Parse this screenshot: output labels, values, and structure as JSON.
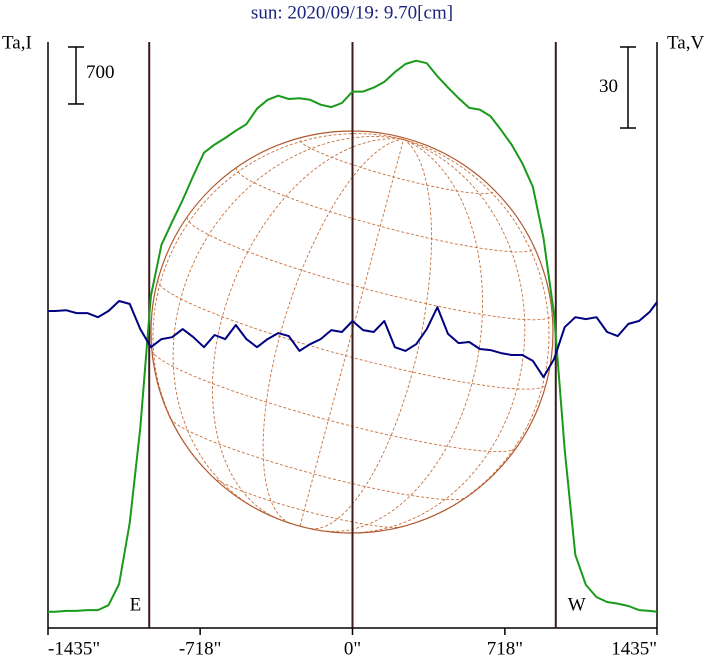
{
  "chart_data": {
    "type": "line",
    "title": "sun: 2020/09/19: 9.70[cm]",
    "ylabel": "Ta,I",
    "y2label": "Ta,V",
    "x": [
      -1435,
      -1400,
      -1350,
      -1300,
      -1250,
      -1200,
      -1150,
      -1100,
      -1050,
      -1000,
      -950,
      -900,
      -850,
      -800,
      -750,
      -700,
      -650,
      -600,
      -550,
      -500,
      -450,
      -400,
      -350,
      -300,
      -250,
      -200,
      -150,
      -100,
      -50,
      0,
      50,
      100,
      150,
      200,
      250,
      300,
      350,
      400,
      450,
      500,
      550,
      600,
      650,
      700,
      750,
      800,
      850,
      900,
      950,
      1000,
      1050,
      1100,
      1150,
      1200,
      1250,
      1300,
      1350,
      1400,
      1435
    ],
    "series": [
      {
        "color": "#1a9a1a",
        "axis": "y",
        "values": [
          200,
          200,
          210,
          210,
          220,
          220,
          280,
          540,
          1290,
          2460,
          4080,
          4710,
          4990,
          5260,
          5560,
          5840,
          5940,
          6020,
          6110,
          6190,
          6380,
          6490,
          6540,
          6500,
          6510,
          6490,
          6430,
          6400,
          6450,
          6590,
          6590,
          6640,
          6710,
          6830,
          6930,
          6970,
          6940,
          6780,
          6640,
          6510,
          6390,
          6370,
          6290,
          6120,
          5940,
          5710,
          5420,
          4790,
          3850,
          2190,
          900,
          530,
          380,
          320,
          300,
          270,
          220,
          210,
          200
        ]
      },
      {
        "color": "#000080",
        "axis": "y2",
        "values": [
          10.4,
          10.4,
          10.7,
          9.6,
          9.6,
          8.1,
          10.4,
          14.1,
          13.0,
          3.7,
          -3.0,
          0,
          0.7,
          3.7,
          0.7,
          -3.0,
          1.5,
          0,
          5.2,
          0,
          -3.0,
          0,
          2.2,
          1.1,
          -4.4,
          -1.9,
          0,
          3.3,
          2.6,
          6.7,
          3.3,
          2.6,
          6.7,
          -3.0,
          -4.4,
          -1.9,
          3.7,
          11.8,
          1.9,
          -1.5,
          -1.1,
          -3.7,
          -4.1,
          -5.2,
          -5.9,
          -5.9,
          -8.1,
          -14.1,
          -7.4,
          4.4,
          8.1,
          7.4,
          8.1,
          2.6,
          1.1,
          5.6,
          6.7,
          10.0,
          13.7
        ]
      }
    ],
    "xlim": [
      -1435,
      1435
    ],
    "xticks": [
      {
        "value": -1435,
        "label": "-1435\""
      },
      {
        "value": -718,
        "label": "-718\""
      },
      {
        "value": 0,
        "label": "0\""
      },
      {
        "value": 718,
        "label": "718\""
      },
      {
        "value": 1435,
        "label": "1435\""
      }
    ],
    "ylim": [
      0,
      7200
    ],
    "y2lim": [
      -107,
      110
    ],
    "vlines": [
      {
        "x": -958,
        "label": "E"
      },
      {
        "x": 0
      },
      {
        "x": 958,
        "label": "W"
      }
    ],
    "scale_bars": [
      {
        "axis": "y",
        "value": 700
      },
      {
        "axis": "y2",
        "value": 30
      }
    ]
  }
}
